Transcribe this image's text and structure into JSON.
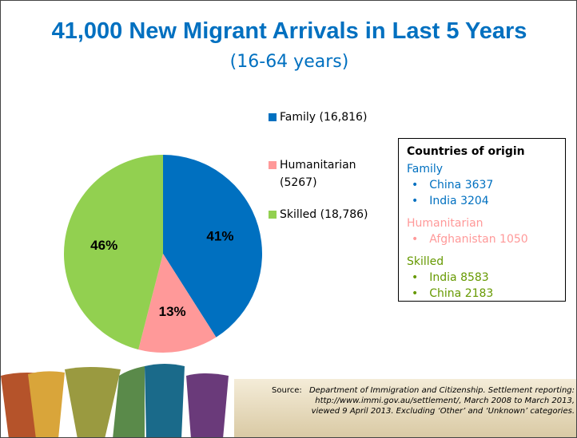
{
  "chart_data": {
    "type": "pie",
    "title": "41,000 New Migrant Arrivals in Last 5 Years",
    "subtitle": "(16-64 years)",
    "categories": [
      "Family (16,816)",
      "Humanitarian (5267)",
      "Skilled (18,786)"
    ],
    "values": [
      41,
      13,
      46
    ],
    "value_labels": [
      "41%",
      "13%",
      "46%"
    ],
    "colors": [
      "#0070c0",
      "#ff9999",
      "#92d050"
    ],
    "legend": "right"
  },
  "origin_box": {
    "title": "Countries of origin",
    "groups": [
      {
        "name": "Family",
        "color": "#0070c0",
        "items": [
          "China 3637",
          "India 3204"
        ]
      },
      {
        "name": "Humanitarian",
        "color": "#ff9999",
        "items": [
          "Afghanistan 1050"
        ]
      },
      {
        "name": "Skilled",
        "color": "#669900",
        "items": [
          "India 8583",
          "China 2183"
        ]
      }
    ]
  },
  "source": {
    "label": "Source:",
    "lines": [
      "Department of Immigration and Citizenship. Settlement reporting:",
      "http://www.immi.gov.au/settlement/, March 2008 to March 2013,",
      "viewed 9 April 2013. Excluding ‘Other’ and ‘Unknown’ categories."
    ]
  }
}
